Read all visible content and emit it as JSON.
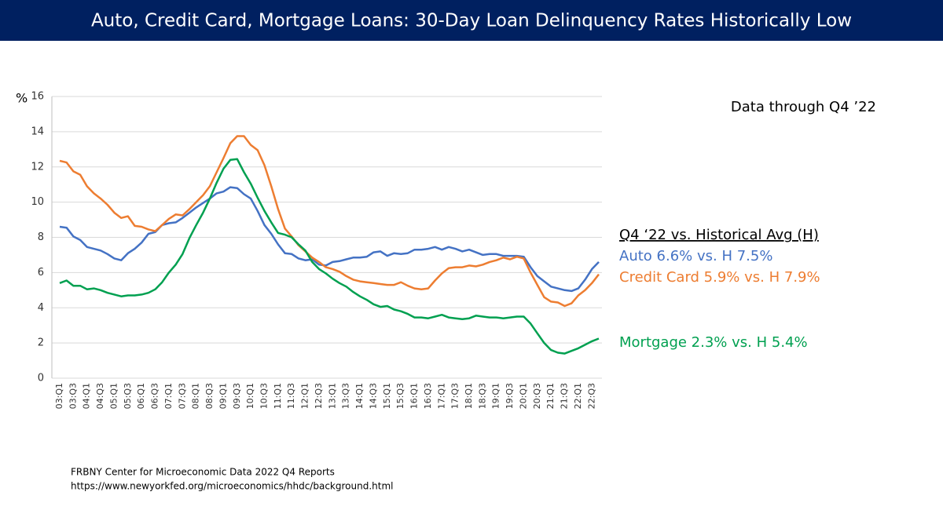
{
  "chart_data": {
    "type": "line",
    "title": "Auto, Credit Card, Mortgage Loans:  30-Day Loan Delinquency Rates Historically Low",
    "y_unit": "%",
    "annotation": "Data through Q4 ’22",
    "legend_title": "Q4 ‘22 vs. Historical Avg (H)",
    "source": [
      "FRBNY Center for Microeconomic Data  2022 Q4 Reports",
      "https://www.newyorkfed.org/microeconomics/hhdc/background.html"
    ],
    "categories": [
      "03:Q1",
      null,
      "03:Q3",
      null,
      "04:Q1",
      null,
      "04:Q3",
      null,
      "05:Q1",
      null,
      "05:Q3",
      null,
      "06:Q1",
      null,
      "06:Q3",
      null,
      "07:Q1",
      null,
      "07:Q3",
      null,
      "08:Q1",
      null,
      "08:Q3",
      null,
      "09:Q1",
      null,
      "09:Q3",
      null,
      "10:Q1",
      null,
      "10:Q3",
      null,
      "11:Q1",
      null,
      "11:Q3",
      null,
      "12:Q1",
      null,
      "12:Q3",
      null,
      "13:Q1",
      null,
      "13:Q3",
      null,
      "14:Q1",
      null,
      "14:Q3",
      null,
      "15:Q1",
      null,
      "15:Q3",
      null,
      "16:Q1",
      null,
      "16:Q3",
      null,
      "17:Q1",
      null,
      "17:Q3",
      null,
      "18:Q1",
      null,
      "18:Q3",
      null,
      "19:Q1",
      null,
      "19:Q3",
      null,
      "20:Q1",
      null,
      "20:Q3",
      null,
      "21:Q1",
      null,
      "21:Q3",
      null,
      "22:Q1",
      null,
      "22:Q3",
      null
    ],
    "series": [
      {
        "name": "Auto 6.6% vs. H 7.5%",
        "color": "#4472c4",
        "values": [
          8.6,
          8.55,
          8.05,
          7.85,
          7.45,
          7.35,
          7.25,
          7.05,
          6.8,
          6.7,
          7.1,
          7.35,
          7.7,
          8.2,
          8.3,
          8.7,
          8.8,
          8.85,
          9.1,
          9.4,
          9.7,
          9.95,
          10.2,
          10.5,
          10.6,
          10.85,
          10.8,
          10.45,
          10.2,
          9.5,
          8.7,
          8.2,
          7.6,
          7.1,
          7.05,
          6.8,
          6.7,
          6.75,
          6.45,
          6.4,
          6.6,
          6.65,
          6.75,
          6.85,
          6.85,
          6.9,
          7.15,
          7.2,
          6.95,
          7.1,
          7.05,
          7.1,
          7.3,
          7.3,
          7.35,
          7.45,
          7.3,
          7.45,
          7.35,
          7.2,
          7.3,
          7.15,
          7.0,
          7.05,
          7.05,
          6.95,
          6.95,
          6.95,
          6.9,
          6.3,
          5.8,
          5.5,
          5.2,
          5.1,
          5.0,
          4.95,
          5.1,
          5.6,
          6.2,
          6.6
        ]
      },
      {
        "name": "Credit Card 5.9% vs. H 7.9%",
        "color": "#ed7d31",
        "values": [
          12.35,
          12.25,
          11.75,
          11.55,
          10.9,
          10.5,
          10.2,
          9.85,
          9.4,
          9.1,
          9.2,
          8.65,
          8.6,
          8.45,
          8.35,
          8.7,
          9.05,
          9.3,
          9.25,
          9.6,
          10.0,
          10.4,
          10.9,
          11.7,
          12.5,
          13.35,
          13.75,
          13.75,
          13.25,
          12.95,
          12.1,
          10.9,
          9.6,
          8.5,
          8.05,
          7.55,
          7.2,
          6.85,
          6.6,
          6.3,
          6.2,
          6.05,
          5.8,
          5.6,
          5.5,
          5.45,
          5.4,
          5.35,
          5.3,
          5.3,
          5.45,
          5.25,
          5.1,
          5.05,
          5.1,
          5.55,
          5.95,
          6.25,
          6.3,
          6.3,
          6.4,
          6.35,
          6.45,
          6.6,
          6.7,
          6.85,
          6.75,
          6.9,
          6.8,
          6.0,
          5.3,
          4.6,
          4.35,
          4.3,
          4.1,
          4.25,
          4.7,
          5.0,
          5.4,
          5.9
        ]
      },
      {
        "name": "Mortgage 2.3% vs. H 5.4%",
        "color": "#00a050",
        "values": [
          5.4,
          5.55,
          5.25,
          5.25,
          5.05,
          5.1,
          5.0,
          4.85,
          4.75,
          4.65,
          4.7,
          4.7,
          4.75,
          4.85,
          5.05,
          5.45,
          6.0,
          6.45,
          7.05,
          7.95,
          8.7,
          9.4,
          10.2,
          11.1,
          11.9,
          12.4,
          12.45,
          11.7,
          11.05,
          10.25,
          9.5,
          8.85,
          8.25,
          8.15,
          8.0,
          7.6,
          7.25,
          6.6,
          6.2,
          5.95,
          5.65,
          5.4,
          5.2,
          4.9,
          4.65,
          4.45,
          4.2,
          4.05,
          4.1,
          3.9,
          3.8,
          3.65,
          3.45,
          3.45,
          3.4,
          3.5,
          3.6,
          3.45,
          3.4,
          3.35,
          3.4,
          3.55,
          3.5,
          3.45,
          3.45,
          3.4,
          3.45,
          3.5,
          3.5,
          3.1,
          2.55,
          2.0,
          1.6,
          1.45,
          1.4,
          1.55,
          1.7,
          1.9,
          2.1,
          2.25
        ]
      }
    ],
    "ylim": [
      0,
      16
    ],
    "yticks": [
      0,
      2,
      4,
      6,
      8,
      10,
      12,
      14,
      16
    ],
    "grid": true
  }
}
